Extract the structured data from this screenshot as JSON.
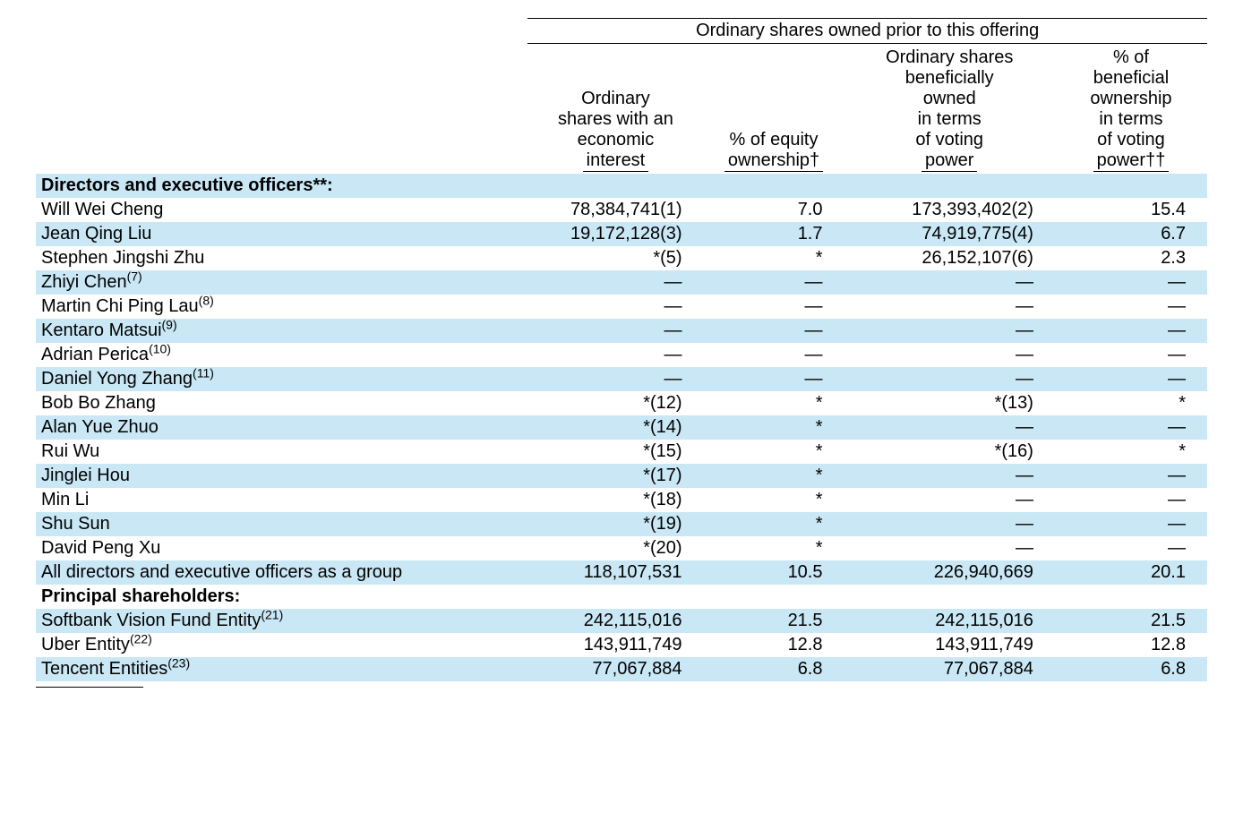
{
  "colors": {
    "stripe": "#c9e7f5",
    "text": "#000000",
    "background": "#ffffff",
    "border": "#000000"
  },
  "fonts": {
    "family": "Arial",
    "size_pt": 20,
    "header_lineheight": 1.15
  },
  "table": {
    "group_header": "Ordinary shares owned prior to this offering",
    "columns": [
      {
        "lines": [
          "Ordinary",
          "shares with an",
          "economic",
          "interest"
        ]
      },
      {
        "lines": [
          "% of equity",
          "ownership†"
        ]
      },
      {
        "lines": [
          "Ordinary shares",
          "beneficially",
          "owned",
          "in terms",
          "of voting",
          "power"
        ]
      },
      {
        "lines": [
          "% of",
          "beneficial",
          "ownership",
          "in terms",
          "of voting",
          "power††"
        ]
      }
    ],
    "column_widths_pct": [
      42,
      15,
      12,
      18,
      13
    ],
    "sections": [
      {
        "title": "Directors and executive officers**:",
        "rows": [
          {
            "name": "Will Wei Cheng",
            "sup": "",
            "c1": "78,384,741(1)",
            "c2": "7.0",
            "c3": "173,393,402(2)",
            "c4": "15.4",
            "stripe": false
          },
          {
            "name": "Jean Qing Liu",
            "sup": "",
            "c1": "19,172,128(3)",
            "c2": "1.7",
            "c3": "74,919,775(4)",
            "c4": "6.7",
            "stripe": true
          },
          {
            "name": "Stephen Jingshi Zhu",
            "sup": "",
            "c1": "*(5)",
            "c2": "*",
            "c3": "26,152,107(6)",
            "c4": "2.3",
            "stripe": false
          },
          {
            "name": "Zhiyi Chen",
            "sup": "(7)",
            "c1": "—",
            "c2": "—",
            "c3": "—",
            "c4": "—",
            "stripe": true
          },
          {
            "name": "Martin Chi Ping Lau",
            "sup": "(8)",
            "c1": "—",
            "c2": "—",
            "c3": "—",
            "c4": "—",
            "stripe": false
          },
          {
            "name": "Kentaro Matsui",
            "sup": "(9)",
            "c1": "—",
            "c2": "—",
            "c3": "—",
            "c4": "—",
            "stripe": true
          },
          {
            "name": "Adrian Perica",
            "sup": "(10)",
            "c1": "—",
            "c2": "—",
            "c3": "—",
            "c4": "—",
            "stripe": false
          },
          {
            "name": "Daniel Yong Zhang",
            "sup": "(11)",
            "c1": "—",
            "c2": "—",
            "c3": "—",
            "c4": "—",
            "stripe": true
          },
          {
            "name": "Bob Bo Zhang",
            "sup": "",
            "c1": "*(12)",
            "c2": "*",
            "c3": "*(13)",
            "c4": "*",
            "stripe": false
          },
          {
            "name": "Alan Yue Zhuo",
            "sup": "",
            "c1": "*(14)",
            "c2": "*",
            "c3": "—",
            "c4": "—",
            "stripe": true
          },
          {
            "name": "Rui Wu",
            "sup": "",
            "c1": "*(15)",
            "c2": "*",
            "c3": "*(16)",
            "c4": "*",
            "stripe": false
          },
          {
            "name": "Jinglei Hou",
            "sup": "",
            "c1": "*(17)",
            "c2": "*",
            "c3": "—",
            "c4": "—",
            "stripe": true
          },
          {
            "name": "Min Li",
            "sup": "",
            "c1": "*(18)",
            "c2": "*",
            "c3": "—",
            "c4": "—",
            "stripe": false
          },
          {
            "name": "Shu Sun",
            "sup": "",
            "c1": "*(19)",
            "c2": "*",
            "c3": "—",
            "c4": "—",
            "stripe": true
          },
          {
            "name": "David Peng Xu",
            "sup": "",
            "c1": "*(20)",
            "c2": "*",
            "c3": "—",
            "c4": "—",
            "stripe": false
          },
          {
            "name": "All directors and executive officers as a group",
            "sup": "",
            "c1": "118,107,531",
            "c2": "10.5",
            "c3": "226,940,669",
            "c4": "20.1",
            "stripe": true
          }
        ]
      },
      {
        "title": "Principal shareholders:",
        "rows": [
          {
            "name": "Softbank Vision Fund Entity",
            "sup": "(21)",
            "c1": "242,115,016",
            "c2": "21.5",
            "c3": "242,115,016",
            "c4": "21.5",
            "stripe": true
          },
          {
            "name": "Uber Entity",
            "sup": "(22)",
            "c1": "143,911,749",
            "c2": "12.8",
            "c3": "143,911,749",
            "c4": "12.8",
            "stripe": false
          },
          {
            "name": "Tencent Entities",
            "sup": "(23)",
            "c1": "77,067,884",
            "c2": "6.8",
            "c3": "77,067,884",
            "c4": "6.8",
            "stripe": true
          }
        ]
      }
    ]
  }
}
